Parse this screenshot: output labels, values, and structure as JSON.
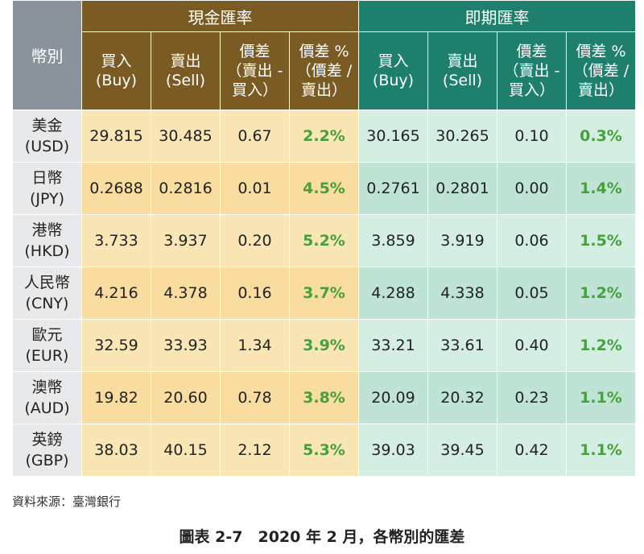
{
  "table": {
    "currency_header": "幣別",
    "groups": {
      "cash": "現金匯率",
      "spot": "即期匯率"
    },
    "subheaders": {
      "buy": [
        "買入",
        "(Buy)"
      ],
      "sell": [
        "賣出",
        "(Sell)"
      ],
      "spread": [
        "價差",
        "（賣出 -",
        "買入）"
      ],
      "spread_pct": [
        "價差 %",
        "（價差 /",
        "賣出）"
      ]
    },
    "rows": [
      {
        "name": "美金",
        "code": "(USD)",
        "cash": [
          "29.815",
          "30.485",
          "0.67",
          "2.2%"
        ],
        "spot": [
          "30.165",
          "30.265",
          "0.10",
          "0.3%"
        ]
      },
      {
        "name": "日幣",
        "code": "(JPY)",
        "cash": [
          "0.2688",
          "0.2816",
          "0.01",
          "4.5%"
        ],
        "spot": [
          "0.2761",
          "0.2801",
          "0.00",
          "1.4%"
        ]
      },
      {
        "name": "港幣",
        "code": "(HKD)",
        "cash": [
          "3.733",
          "3.937",
          "0.20",
          "5.2%"
        ],
        "spot": [
          "3.859",
          "3.919",
          "0.06",
          "1.5%"
        ]
      },
      {
        "name": "人民幣",
        "code": "(CNY)",
        "cash": [
          "4.216",
          "4.378",
          "0.16",
          "3.7%"
        ],
        "spot": [
          "4.288",
          "4.338",
          "0.05",
          "1.2%"
        ]
      },
      {
        "name": "歐元",
        "code": "(EUR)",
        "cash": [
          "32.59",
          "33.93",
          "1.34",
          "3.9%"
        ],
        "spot": [
          "33.21",
          "33.61",
          "0.40",
          "1.2%"
        ]
      },
      {
        "name": "澳幣",
        "code": "(AUD)",
        "cash": [
          "19.82",
          "20.60",
          "0.78",
          "3.8%"
        ],
        "spot": [
          "20.09",
          "20.32",
          "0.23",
          "1.1%"
        ]
      },
      {
        "name": "英鎊",
        "code": "(GBP)",
        "cash": [
          "38.03",
          "40.15",
          "2.12",
          "5.3%"
        ],
        "spot": [
          "39.03",
          "39.45",
          "0.42",
          "1.1%"
        ]
      }
    ]
  },
  "source": "資料來源：臺灣銀行",
  "caption": "圖表 2-7　2020 年 2 月，各幣別的匯差",
  "colors": {
    "cash_header": "#7b5b24",
    "spot_header": "#1e7f6c",
    "currency_header": "#8a939c",
    "percent_text": "#44a13c"
  }
}
